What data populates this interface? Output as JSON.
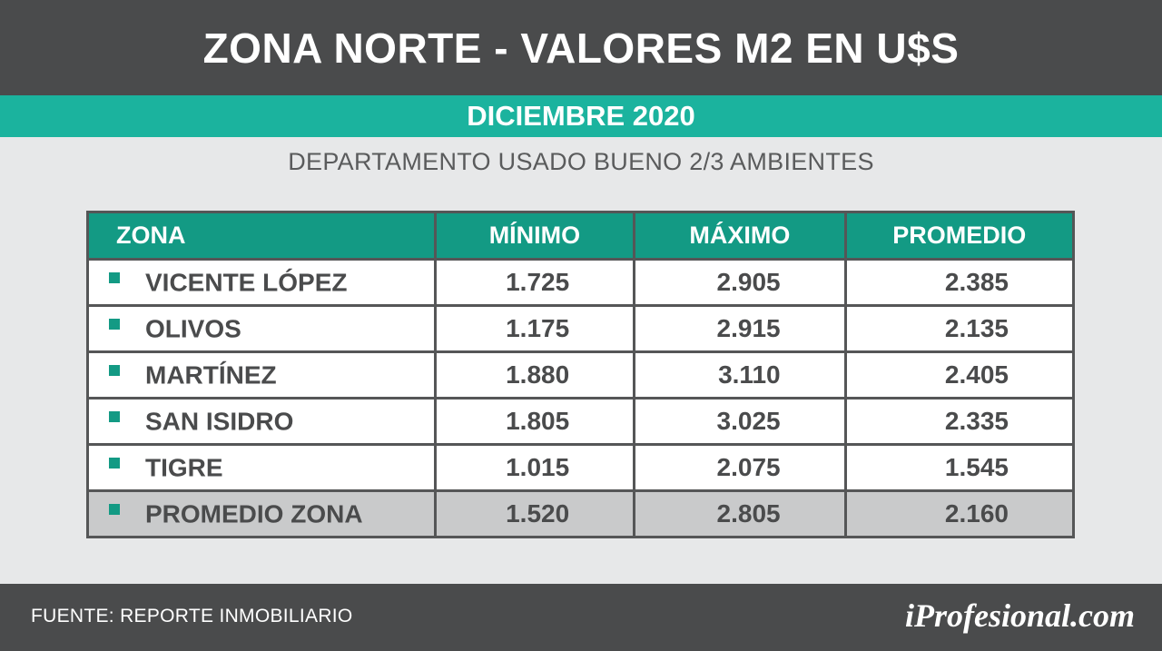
{
  "header": {
    "title": "ZONA NORTE - VALORES M2 EN U$S"
  },
  "band": {
    "date": "DICIEMBRE 2020"
  },
  "subtitle": "DEPARTAMENTO USADO BUENO 2/3 AMBIENTES",
  "footer": {
    "source": "FUENTE: REPORTE INMOBILIARIO",
    "brand": "iProfesional.com"
  },
  "colors": {
    "header_bg": "#4a4b4c",
    "accent": "#1bb39e",
    "table_header": "#139a84",
    "avg_row": "#c9cacb"
  },
  "chart_data": {
    "type": "table",
    "title": "ZONA NORTE - VALORES M2 EN U$S",
    "subtitle": "DEPARTAMENTO USADO BUENO 2/3 AMBIENTES",
    "columns": [
      "ZONA",
      "MÍNIMO",
      "MÁXIMO",
      "PROMEDIO"
    ],
    "rows": [
      {
        "zona": "VICENTE LÓPEZ",
        "minimo": "1.725",
        "maximo": "2.905",
        "promedio": "2.385"
      },
      {
        "zona": "OLIVOS",
        "minimo": "1.175",
        "maximo": "2.915",
        "promedio": "2.135"
      },
      {
        "zona": "MARTÍNEZ",
        "minimo": "1.880",
        "maximo": "3.110",
        "promedio": "2.405"
      },
      {
        "zona": "SAN ISIDRO",
        "minimo": "1.805",
        "maximo": "3.025",
        "promedio": "2.335"
      },
      {
        "zona": "TIGRE",
        "minimo": "1.015",
        "maximo": "2.075",
        "promedio": "1.545"
      },
      {
        "zona": "PROMEDIO ZONA",
        "minimo": "1.520",
        "maximo": "2.805",
        "promedio": "2.160"
      }
    ]
  }
}
